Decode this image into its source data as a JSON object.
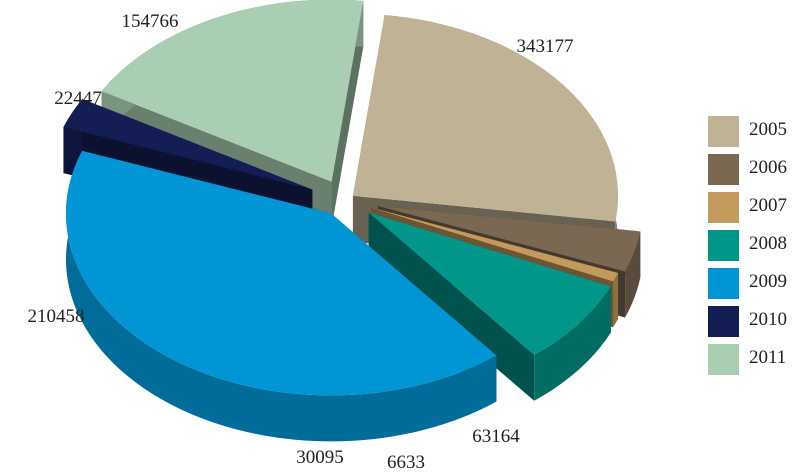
{
  "chart_data": {
    "type": "pie",
    "style": "3d-exploded",
    "legend_position": "right",
    "slices": [
      {
        "name": "2005",
        "value": 210458,
        "color": "#bfb295"
      },
      {
        "name": "2006",
        "value": 30095,
        "color": "#7a6852"
      },
      {
        "name": "2007",
        "value": 6633,
        "color": "#c49a5c"
      },
      {
        "name": "2008",
        "value": 63164,
        "color": "#00978a"
      },
      {
        "name": "2009",
        "value": 343177,
        "color": "#0096d6"
      },
      {
        "name": "2010",
        "value": 22447,
        "color": "#141e55"
      },
      {
        "name": "2011",
        "value": 154766,
        "color": "#a9ceb1"
      }
    ]
  }
}
